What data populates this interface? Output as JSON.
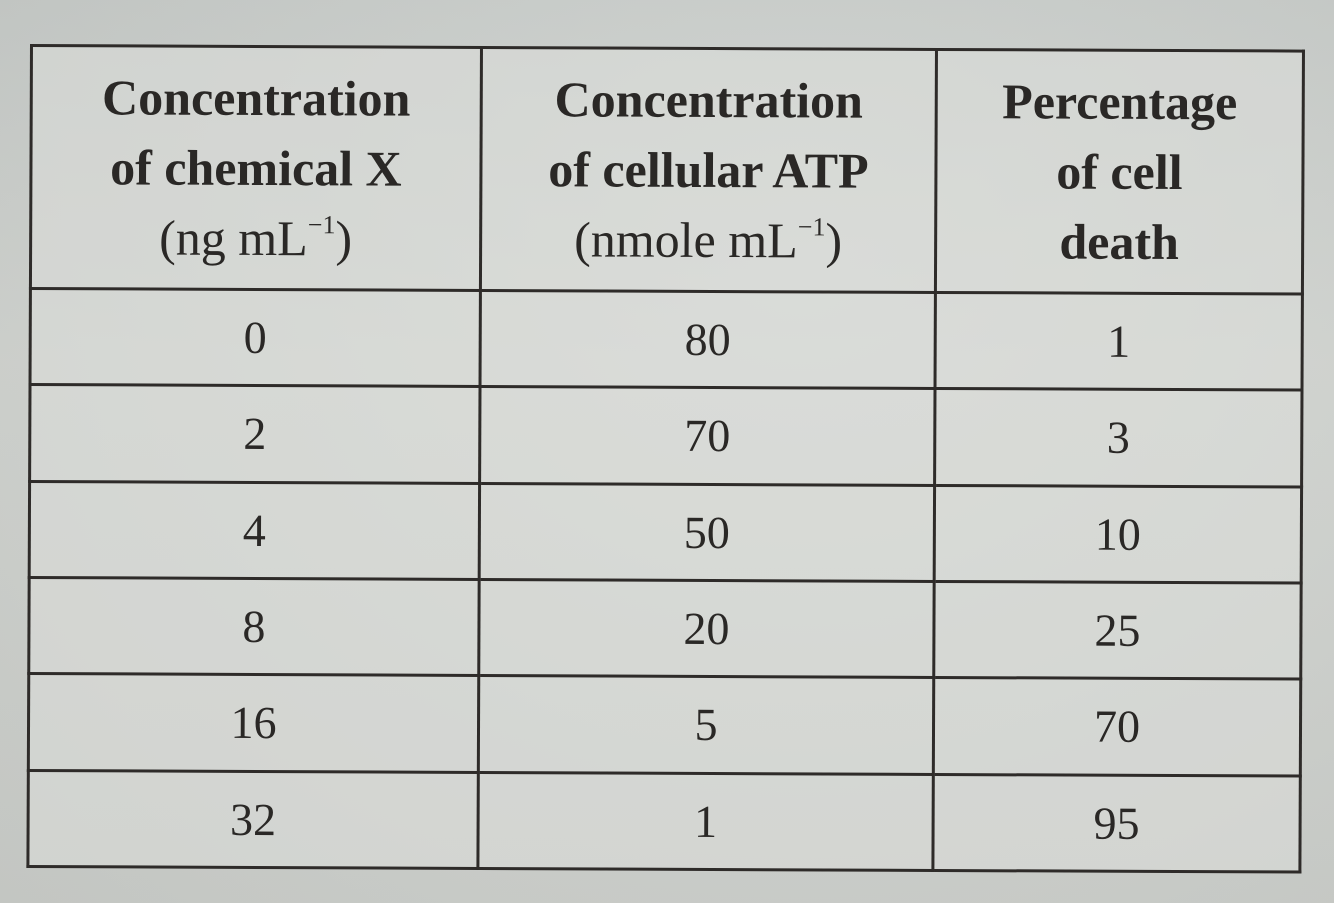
{
  "table": {
    "headers": [
      {
        "line1": "Concentration",
        "line2": "of chemical X",
        "unit_base": "(ng mL",
        "unit_exp": "−1",
        "unit_close": ")"
      },
      {
        "line1": "Concentration",
        "line2": "of cellular ATP",
        "unit_base": "(nmole mL",
        "unit_exp": "−1",
        "unit_close": ")"
      },
      {
        "line1": "Percentage",
        "line2": "of cell",
        "line3": "death"
      }
    ],
    "rows": [
      [
        "0",
        "80",
        "1"
      ],
      [
        "2",
        "70",
        "3"
      ],
      [
        "4",
        "50",
        "10"
      ],
      [
        "8",
        "20",
        "25"
      ],
      [
        "16",
        "5",
        "70"
      ],
      [
        "32",
        "1",
        "95"
      ]
    ]
  }
}
